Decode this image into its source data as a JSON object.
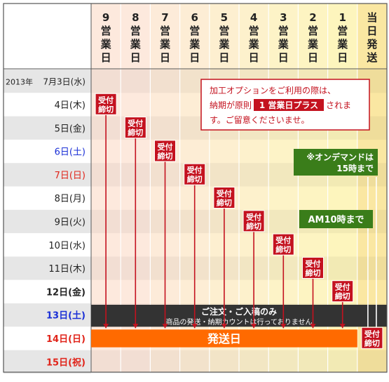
{
  "header": {
    "columns": [
      {
        "chars": [
          "9",
          "営",
          "業",
          "日"
        ]
      },
      {
        "chars": [
          "8",
          "営",
          "業",
          "日"
        ]
      },
      {
        "chars": [
          "7",
          "営",
          "業",
          "日"
        ]
      },
      {
        "chars": [
          "6",
          "営",
          "業",
          "日"
        ]
      },
      {
        "chars": [
          "5",
          "営",
          "業",
          "日"
        ]
      },
      {
        "chars": [
          "4",
          "営",
          "業",
          "日"
        ]
      },
      {
        "chars": [
          "3",
          "営",
          "業",
          "日"
        ]
      },
      {
        "chars": [
          "2",
          "営",
          "業",
          "日"
        ]
      },
      {
        "chars": [
          "1",
          "営",
          "業",
          "日"
        ]
      },
      {
        "chars": [
          "当",
          "日",
          "発",
          "送"
        ]
      }
    ]
  },
  "rows": [
    {
      "year": "2013年",
      "label": "7月3日(水)",
      "kind": "normal"
    },
    {
      "label": "4日(木)",
      "kind": "normal"
    },
    {
      "label": "5日(金)",
      "kind": "normal"
    },
    {
      "label": "6日(土)",
      "kind": "sat"
    },
    {
      "label": "7日(日)",
      "kind": "sun"
    },
    {
      "label": "8日(月)",
      "kind": "normal"
    },
    {
      "label": "9日(火)",
      "kind": "normal"
    },
    {
      "label": "10日(水)",
      "kind": "normal"
    },
    {
      "label": "11日(木)",
      "kind": "normal"
    },
    {
      "label": "12日(金)",
      "kind": "bold"
    },
    {
      "label": "13日(土)",
      "kind": "sat-bold"
    },
    {
      "label": "14日(日)",
      "kind": "sun-bold"
    },
    {
      "label": "15日(祝)",
      "kind": "sun-bold"
    }
  ],
  "cutoff_badge": {
    "line1": "受付",
    "line2": "締切"
  },
  "cutoffs": [
    {
      "column": 0,
      "row": 1
    },
    {
      "column": 1,
      "row": 2
    },
    {
      "column": 2,
      "row": 3
    },
    {
      "column": 3,
      "row": 4
    },
    {
      "column": 4,
      "row": 5
    },
    {
      "column": 5,
      "row": 6
    },
    {
      "column": 6,
      "row": 7
    },
    {
      "column": 7,
      "row": 8
    },
    {
      "column": 8,
      "row": 9
    },
    {
      "column": 9,
      "row": 11
    }
  ],
  "notice": {
    "line1": "加工オプションをご利用の際は、",
    "line2_pre": "納期が原則",
    "line2_highlight": "1 営業日プラス",
    "line2_post": "されま",
    "line3": "す。ご留意くださいませ。"
  },
  "ondemand_note": {
    "line1": "※オンデマンドは",
    "line2": "15時まで"
  },
  "am10_note": "AM10時まで",
  "no_ship_band": {
    "line1": "ご注文・ご入稿のみ",
    "line2": "商品の発送・納期カウントは行っておりません"
  },
  "ship_band": "発送日",
  "colors": {
    "column_shades": [
      "#fde9dd",
      "#fde9dd",
      "#fdebd9",
      "#fdedd5",
      "#fdefd0",
      "#fdf1cc",
      "#fdf3c7",
      "#fdf4c2",
      "#fdf5bd",
      "#fae7a2"
    ],
    "cutoff_red": "#c4121f",
    "band_dark": "#333333",
    "band_orange": "#ff6a00",
    "note_green": "#3a7d1a",
    "sat_blue": "#1a2fd6",
    "sun_red": "#e0241a",
    "row_stripe": "#e6e6e6"
  }
}
